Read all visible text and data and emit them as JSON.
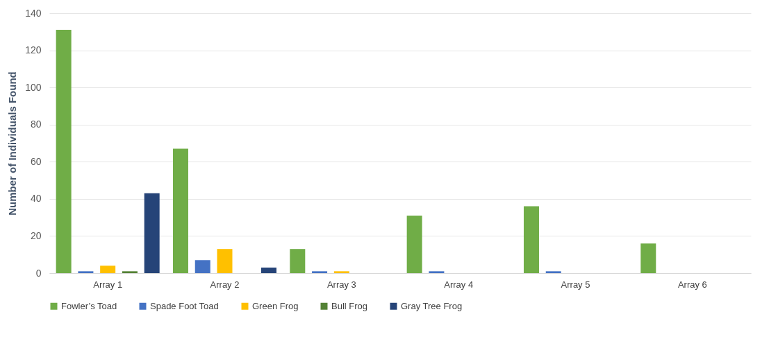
{
  "chart_data": {
    "type": "bar",
    "ylabel": "Number of Individuals Found",
    "categories": [
      "Array 1",
      "Array 2",
      "Array 3",
      "Array 4",
      "Array 5",
      "Array 6"
    ],
    "series": [
      {
        "name": "Fowler’s Toad",
        "color": "#70ad47",
        "values": [
          131,
          67,
          13,
          31,
          36,
          16
        ]
      },
      {
        "name": "Spade Foot Toad",
        "color": "#4472c4",
        "values": [
          1,
          7,
          1,
          1,
          1,
          0
        ]
      },
      {
        "name": "Green Frog",
        "color": "#ffc000",
        "values": [
          4,
          13,
          1,
          0,
          0,
          0
        ]
      },
      {
        "name": "Bull Frog",
        "color": "#548235",
        "values": [
          1,
          0,
          0,
          0,
          0,
          0
        ]
      },
      {
        "name": "Gray Tree Frog",
        "color": "#264478",
        "values": [
          43,
          3,
          0,
          0,
          0,
          0
        ]
      }
    ],
    "ylim": [
      0,
      140
    ],
    "yticks": [
      0,
      20,
      40,
      60,
      80,
      100,
      120,
      140
    ],
    "grid": "y",
    "legend": "bottom"
  }
}
